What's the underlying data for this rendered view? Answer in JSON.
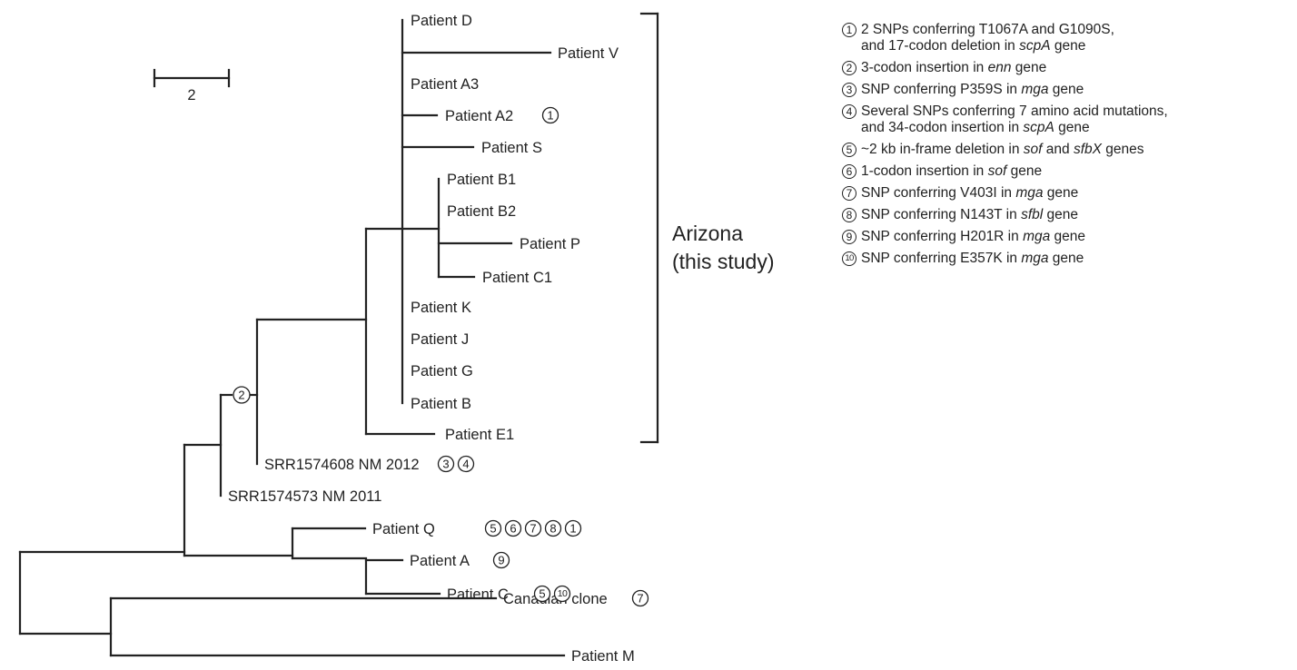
{
  "scale_bar": {
    "label": "2"
  },
  "region": {
    "line1": "Arizona",
    "line2": "(this study)"
  },
  "leaves": [
    {
      "id": "patient-d",
      "label": "Patient D",
      "markers": []
    },
    {
      "id": "patient-v",
      "label": "Patient V",
      "markers": []
    },
    {
      "id": "patient-a3",
      "label": "Patient A3",
      "markers": []
    },
    {
      "id": "patient-a2",
      "label": "Patient A2",
      "markers": [
        "1"
      ]
    },
    {
      "id": "patient-s",
      "label": "Patient S",
      "markers": []
    },
    {
      "id": "patient-b1",
      "label": "Patient B1",
      "markers": []
    },
    {
      "id": "patient-b2",
      "label": "Patient B2",
      "markers": []
    },
    {
      "id": "patient-p",
      "label": "Patient P",
      "markers": []
    },
    {
      "id": "patient-c1",
      "label": "Patient C1",
      "markers": []
    },
    {
      "id": "patient-k",
      "label": "Patient K",
      "markers": []
    },
    {
      "id": "patient-j",
      "label": "Patient J",
      "markers": []
    },
    {
      "id": "patient-g",
      "label": "Patient G",
      "markers": []
    },
    {
      "id": "patient-b",
      "label": "Patient B",
      "markers": []
    },
    {
      "id": "patient-e1",
      "label": "Patient E1",
      "markers": []
    },
    {
      "id": "srr1574608",
      "label": "SRR1574608 NM 2012",
      "markers": [
        "3",
        "4"
      ]
    },
    {
      "id": "srr1574573",
      "label": "SRR1574573 NM 2011",
      "markers": []
    },
    {
      "id": "patient-q",
      "label": "Patient Q",
      "markers": [
        "5",
        "6",
        "7",
        "8",
        "1"
      ]
    },
    {
      "id": "patient-a",
      "label": "Patient A",
      "markers": [
        "9"
      ]
    },
    {
      "id": "patient-c",
      "label": "Patient C",
      "markers": [
        "5",
        "10"
      ]
    },
    {
      "id": "canadian-clone",
      "label": "Canadian clone",
      "markers": [
        "7"
      ]
    },
    {
      "id": "patient-m",
      "label": "Patient M",
      "markers": []
    }
  ],
  "branch_markers": [
    {
      "id": "enn-insertion",
      "marker": "2"
    }
  ],
  "legend": [
    {
      "num": "1",
      "lines": [
        [
          {
            "t": "2 SNPs conferring T1067A and G1090S,"
          }
        ],
        [
          {
            "t": "and 17-codon deletion in "
          },
          {
            "t": "scpA",
            "i": true
          },
          {
            "t": " gene"
          }
        ]
      ]
    },
    {
      "num": "2",
      "lines": [
        [
          {
            "t": "3-codon insertion in "
          },
          {
            "t": "enn",
            "i": true
          },
          {
            "t": " gene"
          }
        ]
      ]
    },
    {
      "num": "3",
      "lines": [
        [
          {
            "t": "SNP conferring P359S in "
          },
          {
            "t": "mga",
            "i": true
          },
          {
            "t": " gene"
          }
        ]
      ]
    },
    {
      "num": "4",
      "lines": [
        [
          {
            "t": "Several SNPs conferring 7 amino acid mutations,"
          }
        ],
        [
          {
            "t": "and 34-codon insertion in "
          },
          {
            "t": "scpA",
            "i": true
          },
          {
            "t": " gene"
          }
        ]
      ]
    },
    {
      "num": "5",
      "lines": [
        [
          {
            "t": "~2 kb in-frame deletion in "
          },
          {
            "t": "sof",
            "i": true
          },
          {
            "t": " and "
          },
          {
            "t": "sfbX",
            "i": true
          },
          {
            "t": " genes"
          }
        ]
      ]
    },
    {
      "num": "6",
      "lines": [
        [
          {
            "t": "1-codon insertion in "
          },
          {
            "t": "sof",
            "i": true
          },
          {
            "t": " gene"
          }
        ]
      ]
    },
    {
      "num": "7",
      "lines": [
        [
          {
            "t": "SNP conferring V403I in "
          },
          {
            "t": "mga",
            "i": true
          },
          {
            "t": " gene"
          }
        ]
      ]
    },
    {
      "num": "8",
      "lines": [
        [
          {
            "t": "SNP conferring N143T in "
          },
          {
            "t": "sfbl",
            "i": true
          },
          {
            "t": " gene"
          }
        ]
      ]
    },
    {
      "num": "9",
      "lines": [
        [
          {
            "t": "SNP conferring H201R in "
          },
          {
            "t": "mga",
            "i": true
          },
          {
            "t": " gene"
          }
        ]
      ]
    },
    {
      "num": "10",
      "lines": [
        [
          {
            "t": "SNP conferring E357K in "
          },
          {
            "t": "mga",
            "i": true
          },
          {
            "t": " gene"
          }
        ]
      ]
    }
  ]
}
